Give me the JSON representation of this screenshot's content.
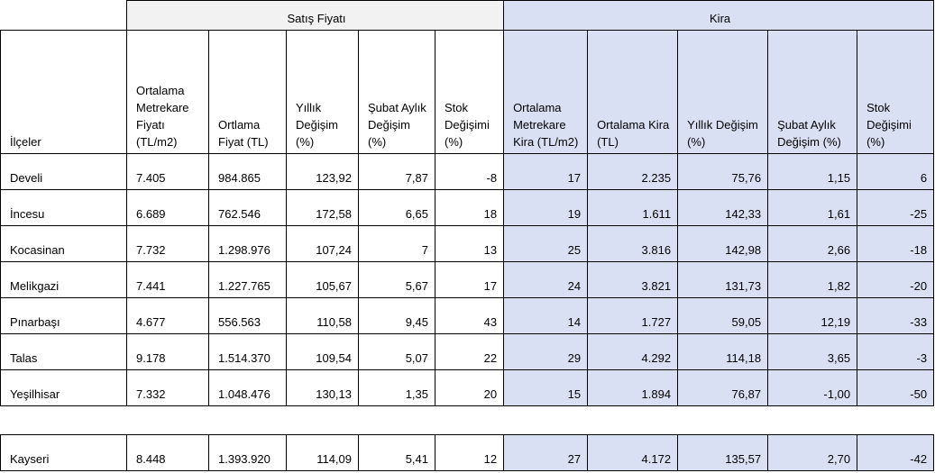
{
  "groups": [
    "Satış Fiyatı",
    "Kira"
  ],
  "headers": [
    "İlçeler",
    "Ortalama Metrekare Fiyatı (TL/m2)",
    "Ortlama Fiyat (TL)",
    "Yıllık Değişim (%)",
    "Şubat Aylık Değişim (%)",
    "Stok Değişimi (%)",
    "Ortalama Metrekare Kira (TL/m2)",
    "Ortalama Kira (TL)",
    "Yıllık Değişim (%)",
    "Şubat Aylık Değişim (%)",
    "Stok Değişimi (%)"
  ],
  "rows": [
    [
      "Develi",
      "7.405",
      "984.865",
      "123,92",
      "7,87",
      "-8",
      "17",
      "2.235",
      "75,76",
      "1,15",
      "6"
    ],
    [
      "İncesu",
      "6.689",
      "762.546",
      "172,58",
      "6,65",
      "18",
      "19",
      "1.611",
      "142,33",
      "1,61",
      "-25"
    ],
    [
      "Kocasinan",
      "7.732",
      "1.298.976",
      "107,24",
      "7",
      "13",
      "25",
      "3.816",
      "142,98",
      "2,66",
      "-18"
    ],
    [
      "Melikgazi",
      "7.441",
      "1.227.765",
      "105,67",
      "5,67",
      "17",
      "24",
      "3.821",
      "131,73",
      "1,82",
      "-20"
    ],
    [
      "Pınarbaşı",
      "4.677",
      "556.563",
      "110,58",
      "9,45",
      "43",
      "14",
      "1.727",
      "59,05",
      "12,19",
      "-33"
    ],
    [
      "Talas",
      "9.178",
      "1.514.370",
      "109,54",
      "5,07",
      "22",
      "29",
      "4.292",
      "114,18",
      "3,65",
      "-3"
    ],
    [
      "Yeşilhisar",
      "7.332",
      "1.048.476",
      "130,13",
      "1,35",
      "20",
      "15",
      "1.894",
      "76,87",
      "-1,00",
      "-50"
    ]
  ],
  "summary": [
    "Kayseri",
    "8.448",
    "1.393.920",
    "114,09",
    "5,41",
    "12",
    "27",
    "4.172",
    "135,57",
    "2,70",
    "-42"
  ]
}
